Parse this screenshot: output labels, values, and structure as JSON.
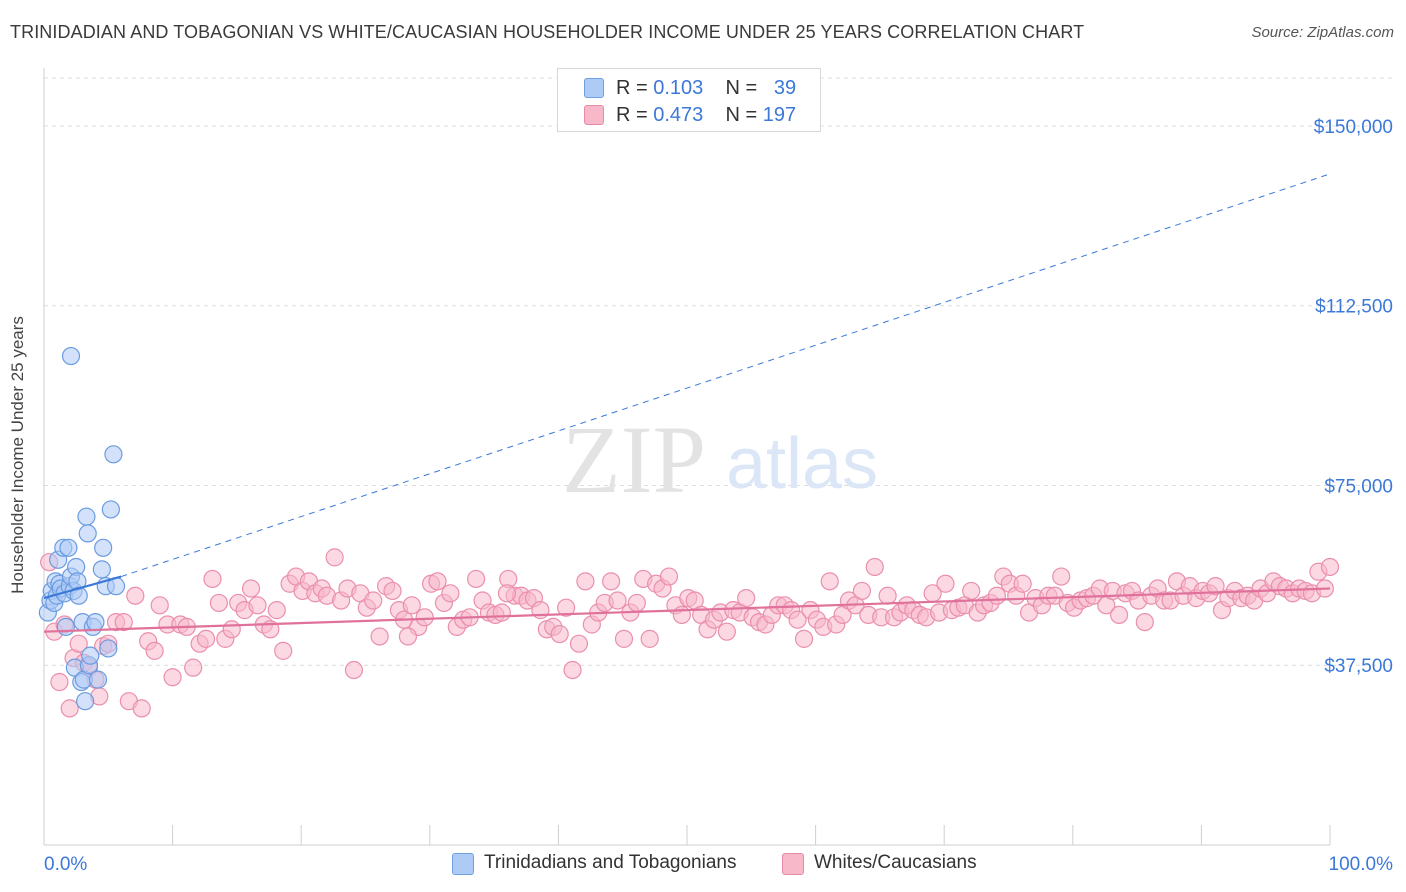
{
  "header": {
    "title": "TRINIDADIAN AND TOBAGONIAN VS WHITE/CAUCASIAN HOUSEHOLDER INCOME UNDER 25 YEARS CORRELATION CHART",
    "source": "Source: ZipAtlas.com"
  },
  "watermark": {
    "zip": "ZIP",
    "atlas": "atlas"
  },
  "legend": {
    "series1": {
      "r_label": "R =",
      "r_value": "0.103",
      "n_label": "N =",
      "n_value": "39",
      "color": "#aecbf5"
    },
    "series2": {
      "r_label": "R =",
      "r_value": "0.473",
      "n_label": "N =",
      "n_value": "197",
      "color": "#f7b8ca"
    }
  },
  "bottom_legend": {
    "series1": "Trinidadians and Tobagonians",
    "series2": "Whites/Caucasians"
  },
  "chart_data": {
    "type": "scatter",
    "title": "TRINIDADIAN AND TOBAGONIAN VS WHITE/CAUCASIAN HOUSEHOLDER INCOME UNDER 25 YEARS CORRELATION CHART",
    "xlabel": "",
    "ylabel": "Householder Income Under 25 years",
    "xlim": [
      0,
      100
    ],
    "ylim": [
      0,
      160000
    ],
    "x_tick_labels": [
      "0.0%",
      "100.0%"
    ],
    "y_ticks": [
      37500,
      75000,
      112500,
      150000
    ],
    "y_tick_labels": [
      "$37,500",
      "$75,000",
      "$112,500",
      "$150,000"
    ],
    "grid": true,
    "legend_position": "top-center",
    "colors": {
      "series1": "#3c78d8",
      "series1_fill": "#aecbf5",
      "series2": "#e0719a",
      "series2_fill": "#f7b8ca",
      "tick_label": "#3c78d8"
    },
    "series": [
      {
        "name": "Trinidadians and Tobagonians",
        "trend": {
          "solid_x": [
            0,
            6
          ],
          "y_at_0": 51500,
          "y_at_6": 56000,
          "dashed_to_x": 100,
          "y_at_100": 140000
        },
        "points": [
          [
            0.3,
            48500
          ],
          [
            0.5,
            51000
          ],
          [
            0.6,
            53000
          ],
          [
            0.8,
            50500
          ],
          [
            0.9,
            55000
          ],
          [
            1.0,
            52000
          ],
          [
            1.1,
            59500
          ],
          [
            1.2,
            54500
          ],
          [
            1.3,
            53500
          ],
          [
            1.5,
            62000
          ],
          [
            1.6,
            52500
          ],
          [
            1.7,
            45500
          ],
          [
            1.9,
            62000
          ],
          [
            2.0,
            54000
          ],
          [
            2.1,
            56000
          ],
          [
            2.3,
            53000
          ],
          [
            2.4,
            37000
          ],
          [
            2.5,
            58000
          ],
          [
            2.6,
            55000
          ],
          [
            2.7,
            52000
          ],
          [
            2.9,
            34000
          ],
          [
            3.0,
            46500
          ],
          [
            3.1,
            34500
          ],
          [
            3.2,
            30000
          ],
          [
            3.3,
            68500
          ],
          [
            3.4,
            65000
          ],
          [
            3.5,
            37500
          ],
          [
            3.6,
            39500
          ],
          [
            3.8,
            45500
          ],
          [
            4.0,
            46500
          ],
          [
            4.2,
            34500
          ],
          [
            4.5,
            57500
          ],
          [
            4.6,
            62000
          ],
          [
            4.8,
            54000
          ],
          [
            5.0,
            41000
          ],
          [
            5.2,
            70000
          ],
          [
            5.4,
            81500
          ],
          [
            5.6,
            54000
          ],
          [
            2.1,
            102000
          ]
        ]
      },
      {
        "name": "Whites/Caucasians",
        "trend": {
          "x": [
            0,
            100
          ],
          "y": [
            44500,
            53500
          ]
        },
        "points": [
          [
            0.4,
            59000
          ],
          [
            0.8,
            44500
          ],
          [
            1.2,
            34000
          ],
          [
            1.6,
            46000
          ],
          [
            2.0,
            28500
          ],
          [
            2.3,
            39000
          ],
          [
            2.7,
            42000
          ],
          [
            3.1,
            38000
          ],
          [
            3.5,
            37000
          ],
          [
            4.0,
            34500
          ],
          [
            4.3,
            31000
          ],
          [
            4.6,
            41500
          ],
          [
            5.0,
            42000
          ],
          [
            5.6,
            46500
          ],
          [
            6.2,
            46500
          ],
          [
            6.6,
            30000
          ],
          [
            7.1,
            52000
          ],
          [
            7.6,
            28500
          ],
          [
            8.1,
            42500
          ],
          [
            8.6,
            40500
          ],
          [
            9.0,
            50000
          ],
          [
            9.6,
            46000
          ],
          [
            10.0,
            35000
          ],
          [
            10.6,
            46000
          ],
          [
            11.1,
            45500
          ],
          [
            11.6,
            37000
          ],
          [
            12.1,
            42000
          ],
          [
            12.6,
            43000
          ],
          [
            13.1,
            55500
          ],
          [
            13.6,
            50500
          ],
          [
            14.1,
            43000
          ],
          [
            14.6,
            45000
          ],
          [
            15.1,
            50500
          ],
          [
            15.6,
            49000
          ],
          [
            16.1,
            53500
          ],
          [
            16.6,
            50000
          ],
          [
            17.1,
            46000
          ],
          [
            17.6,
            45000
          ],
          [
            18.1,
            49000
          ],
          [
            18.6,
            40500
          ],
          [
            19.1,
            54500
          ],
          [
            19.6,
            56000
          ],
          [
            20.1,
            53000
          ],
          [
            20.6,
            55000
          ],
          [
            21.1,
            52500
          ],
          [
            21.6,
            53500
          ],
          [
            22.0,
            52000
          ],
          [
            22.6,
            60000
          ],
          [
            23.1,
            51000
          ],
          [
            23.6,
            53500
          ],
          [
            24.1,
            36500
          ],
          [
            24.6,
            52500
          ],
          [
            25.1,
            49500
          ],
          [
            25.6,
            51000
          ],
          [
            26.1,
            43500
          ],
          [
            26.6,
            54000
          ],
          [
            27.1,
            53000
          ],
          [
            27.6,
            49000
          ],
          [
            28.0,
            47000
          ],
          [
            28.6,
            50000
          ],
          [
            29.1,
            45500
          ],
          [
            29.6,
            47500
          ],
          [
            30.1,
            54500
          ],
          [
            30.6,
            55000
          ],
          [
            31.1,
            50500
          ],
          [
            31.6,
            52500
          ],
          [
            32.1,
            45500
          ],
          [
            32.6,
            47000
          ],
          [
            33.1,
            47500
          ],
          [
            33.6,
            55500
          ],
          [
            34.1,
            51000
          ],
          [
            34.6,
            48500
          ],
          [
            35.1,
            48000
          ],
          [
            35.6,
            48500
          ],
          [
            36.1,
            55500
          ],
          [
            36.6,
            52000
          ],
          [
            37.1,
            52000
          ],
          [
            37.6,
            51000
          ],
          [
            38.1,
            51500
          ],
          [
            38.6,
            49000
          ],
          [
            39.1,
            45000
          ],
          [
            39.6,
            45500
          ],
          [
            40.1,
            44000
          ],
          [
            40.6,
            49500
          ],
          [
            41.1,
            36500
          ],
          [
            41.6,
            42000
          ],
          [
            42.1,
            55000
          ],
          [
            42.6,
            46000
          ],
          [
            43.1,
            48500
          ],
          [
            43.6,
            50500
          ],
          [
            44.1,
            55000
          ],
          [
            44.6,
            51000
          ],
          [
            45.1,
            43000
          ],
          [
            45.6,
            48500
          ],
          [
            46.1,
            50500
          ],
          [
            46.6,
            55500
          ],
          [
            47.1,
            43000
          ],
          [
            47.6,
            54500
          ],
          [
            48.1,
            53500
          ],
          [
            48.6,
            56000
          ],
          [
            49.1,
            50000
          ],
          [
            49.6,
            48000
          ],
          [
            50.1,
            51500
          ],
          [
            50.6,
            51000
          ],
          [
            51.1,
            48000
          ],
          [
            51.6,
            45000
          ],
          [
            52.1,
            47000
          ],
          [
            52.6,
            48500
          ],
          [
            53.1,
            44500
          ],
          [
            53.6,
            49000
          ],
          [
            54.1,
            48500
          ],
          [
            54.6,
            51500
          ],
          [
            55.1,
            47500
          ],
          [
            55.6,
            46500
          ],
          [
            56.1,
            46000
          ],
          [
            56.6,
            48000
          ],
          [
            57.1,
            50000
          ],
          [
            57.6,
            50000
          ],
          [
            58.1,
            49000
          ],
          [
            58.6,
            47000
          ],
          [
            59.1,
            43000
          ],
          [
            59.6,
            49000
          ],
          [
            60.1,
            47000
          ],
          [
            60.6,
            45500
          ],
          [
            61.1,
            55000
          ],
          [
            61.6,
            46000
          ],
          [
            62.1,
            48000
          ],
          [
            62.6,
            51000
          ],
          [
            63.1,
            50000
          ],
          [
            63.6,
            53000
          ],
          [
            64.1,
            48000
          ],
          [
            64.6,
            58000
          ],
          [
            65.1,
            47500
          ],
          [
            65.6,
            52000
          ],
          [
            66.1,
            47500
          ],
          [
            66.6,
            48500
          ],
          [
            67.1,
            50000
          ],
          [
            67.6,
            49000
          ],
          [
            68.1,
            48000
          ],
          [
            68.6,
            47500
          ],
          [
            69.1,
            52500
          ],
          [
            69.6,
            48500
          ],
          [
            70.1,
            54500
          ],
          [
            70.6,
            49000
          ],
          [
            71.1,
            49500
          ],
          [
            71.6,
            50000
          ],
          [
            72.1,
            53000
          ],
          [
            72.6,
            48500
          ],
          [
            73.1,
            50000
          ],
          [
            73.6,
            50500
          ],
          [
            74.1,
            52000
          ],
          [
            74.6,
            56000
          ],
          [
            75.1,
            54500
          ],
          [
            75.6,
            52000
          ],
          [
            76.1,
            54500
          ],
          [
            76.6,
            48500
          ],
          [
            77.1,
            51500
          ],
          [
            77.6,
            50000
          ],
          [
            78.1,
            52000
          ],
          [
            78.6,
            52000
          ],
          [
            79.1,
            56000
          ],
          [
            79.6,
            50500
          ],
          [
            80.1,
            49500
          ],
          [
            80.6,
            51000
          ],
          [
            81.1,
            51500
          ],
          [
            81.6,
            52000
          ],
          [
            82.1,
            53500
          ],
          [
            82.6,
            50000
          ],
          [
            83.1,
            53000
          ],
          [
            83.6,
            48000
          ],
          [
            84.1,
            52500
          ],
          [
            84.6,
            53000
          ],
          [
            85.1,
            51000
          ],
          [
            85.6,
            46500
          ],
          [
            86.1,
            52000
          ],
          [
            86.6,
            53500
          ],
          [
            87.1,
            51000
          ],
          [
            87.6,
            51000
          ],
          [
            88.1,
            55000
          ],
          [
            88.6,
            52000
          ],
          [
            89.1,
            54000
          ],
          [
            89.6,
            51500
          ],
          [
            90.1,
            53000
          ],
          [
            90.6,
            52500
          ],
          [
            91.1,
            54000
          ],
          [
            91.6,
            49000
          ],
          [
            92.1,
            51500
          ],
          [
            92.6,
            53000
          ],
          [
            93.1,
            51500
          ],
          [
            93.6,
            52000
          ],
          [
            94.1,
            51000
          ],
          [
            94.6,
            53500
          ],
          [
            95.1,
            52500
          ],
          [
            95.6,
            55000
          ],
          [
            96.1,
            54000
          ],
          [
            96.6,
            53500
          ],
          [
            97.1,
            52500
          ],
          [
            97.6,
            53500
          ],
          [
            98.1,
            53000
          ],
          [
            98.6,
            52500
          ],
          [
            99.1,
            57000
          ],
          [
            99.6,
            53500
          ],
          [
            100.0,
            58000
          ],
          [
            36.0,
            52500
          ],
          [
            28.3,
            43500
          ]
        ]
      }
    ]
  }
}
